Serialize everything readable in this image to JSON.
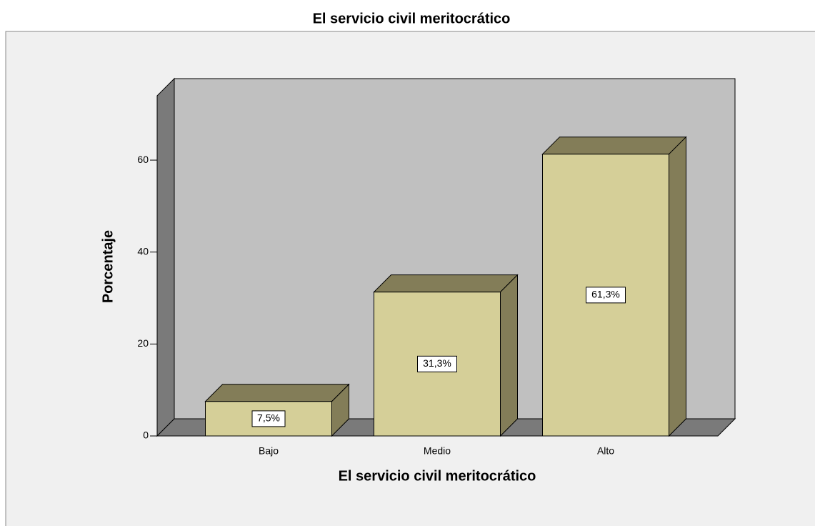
{
  "chart_data": {
    "type": "bar3d",
    "title": "El servicio civil meritocrático",
    "x_label": "El servicio civil meritocrático",
    "y_label": "Porcentaje",
    "categories": [
      "Bajo",
      "Medio",
      "Alto"
    ],
    "values": [
      7.5,
      31.3,
      61.3
    ],
    "value_labels": [
      "7,5%",
      "31,3%",
      "61,3%"
    ],
    "color": "#d5cf98",
    "side_color": "#837d58",
    "ylim": [
      0,
      74
    ],
    "yticks": [
      0,
      20,
      40,
      60
    ]
  }
}
